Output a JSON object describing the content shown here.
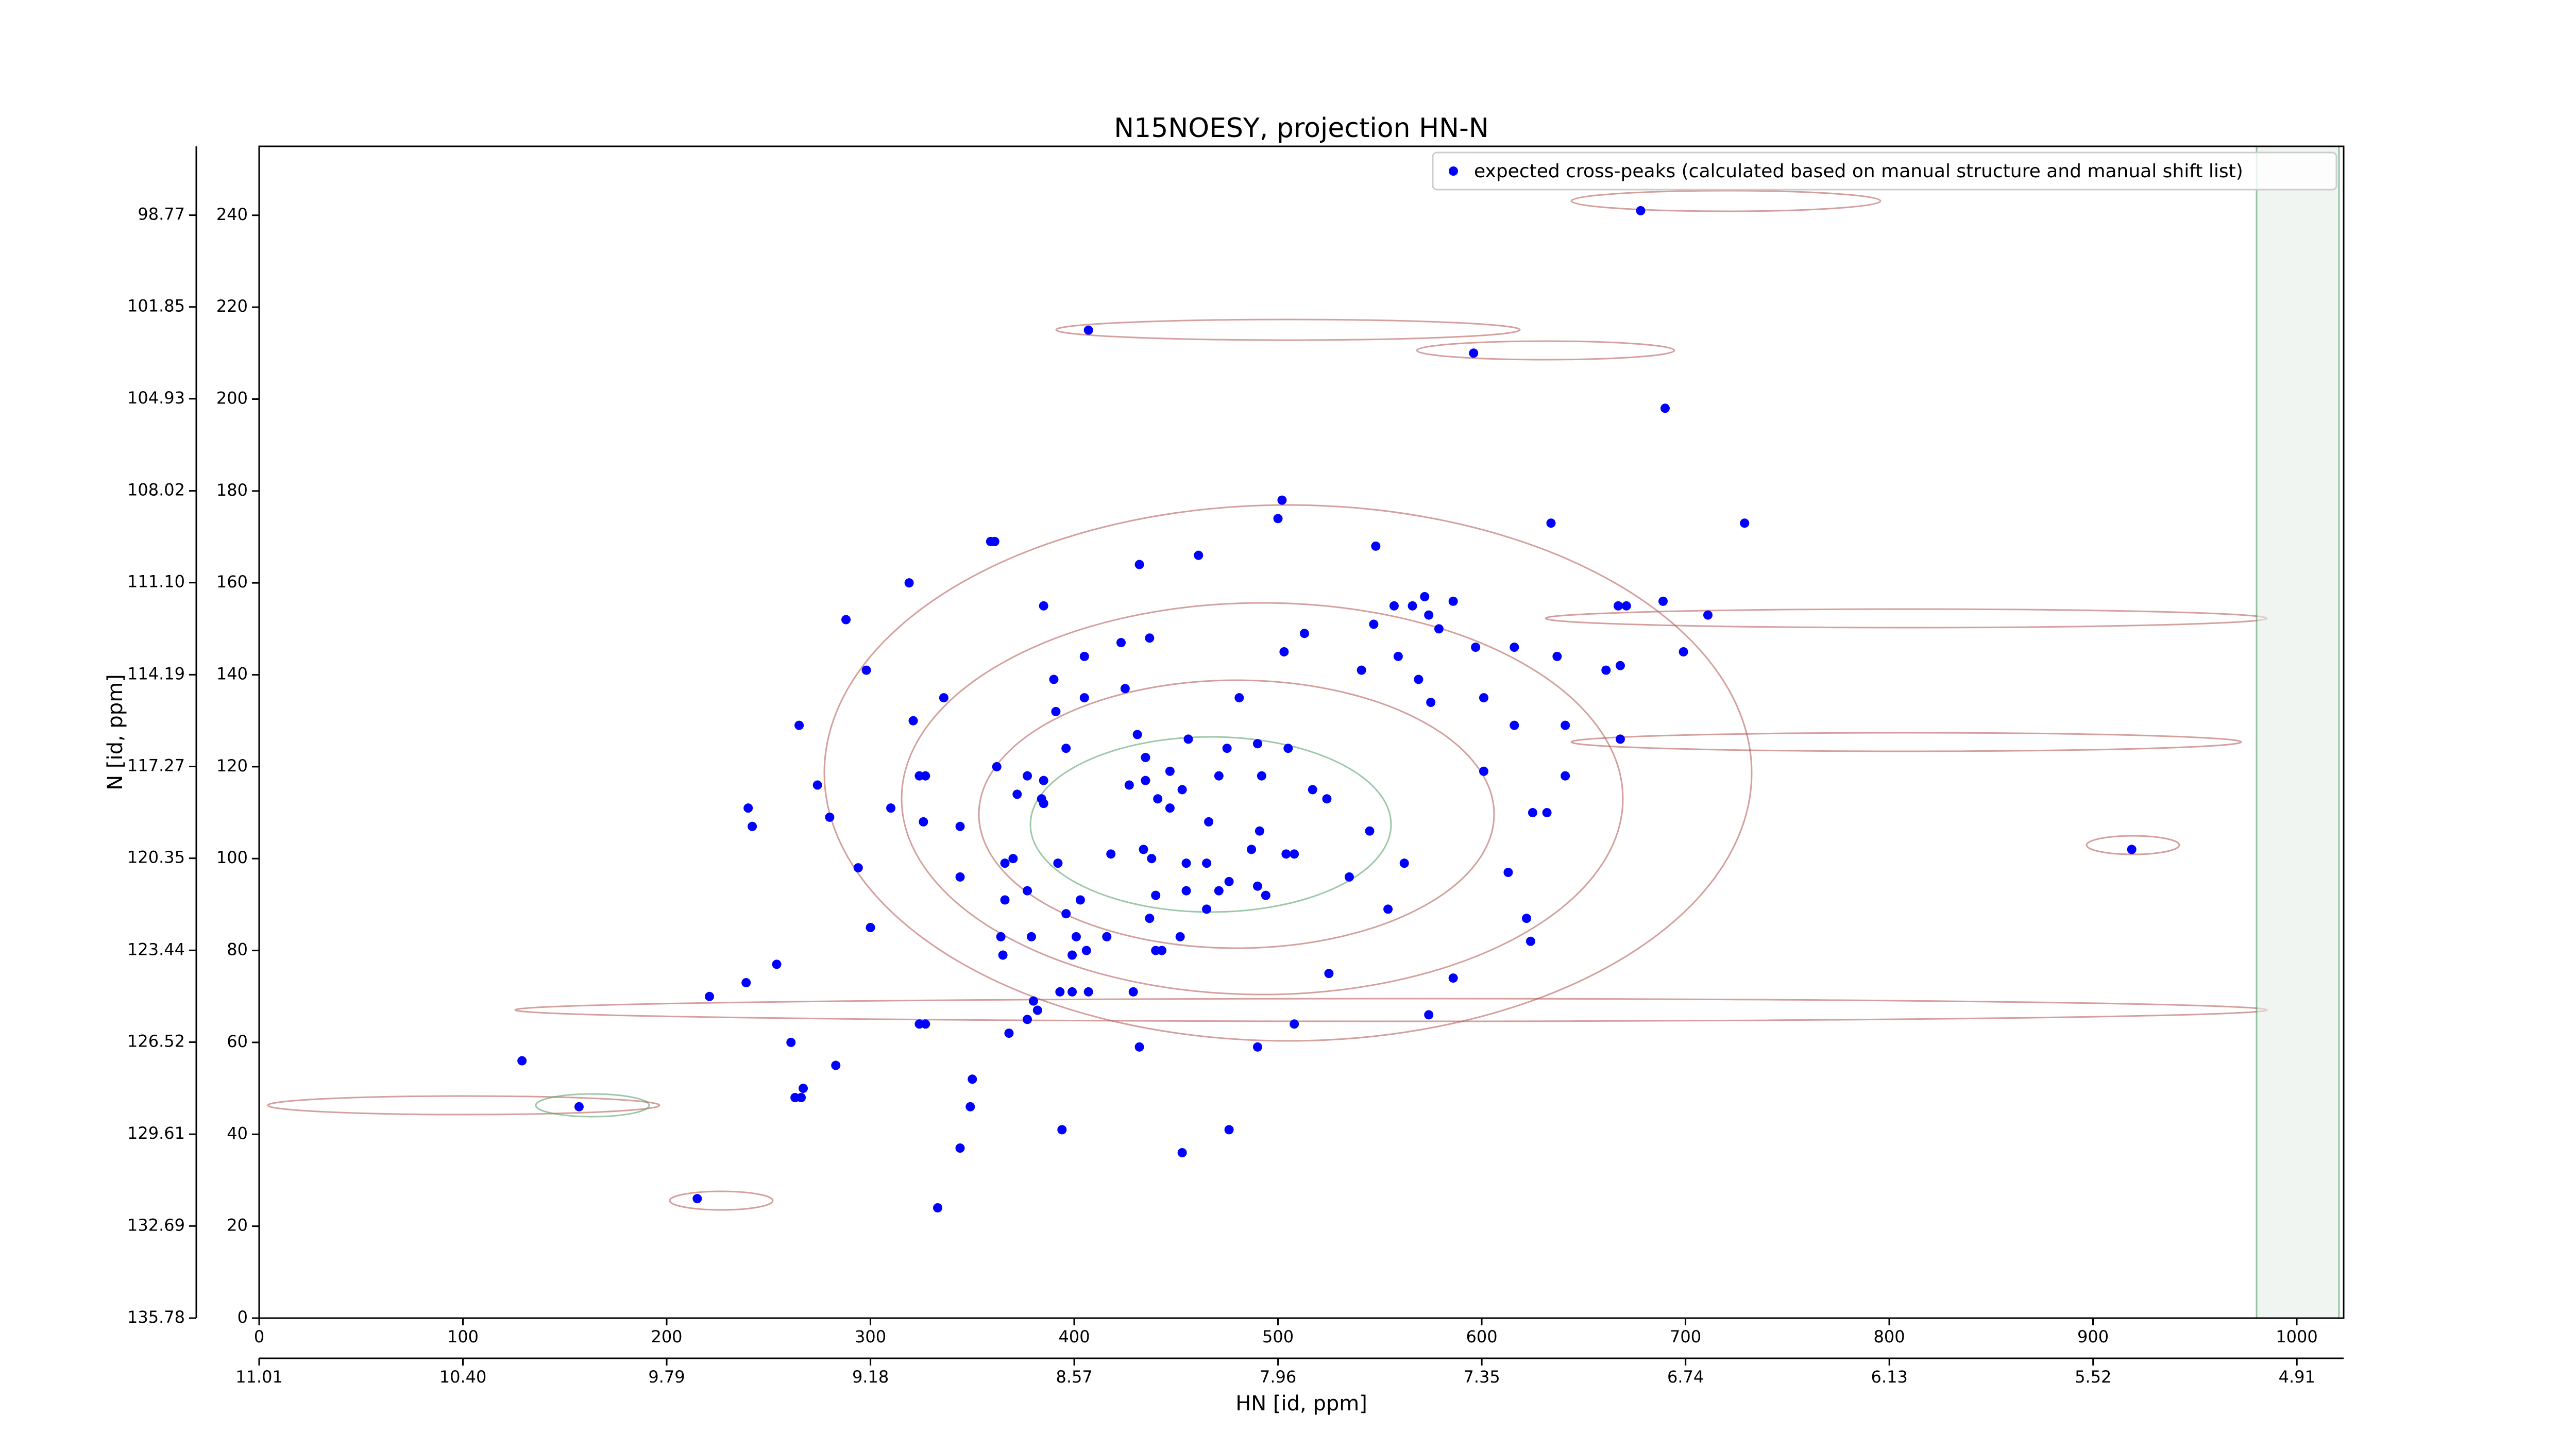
{
  "chart_data": {
    "type": "scatter",
    "title": "N15NOESY, projection HN-N",
    "x_label": "HN [id, ppm]",
    "y_label": "N [id, ppm]",
    "legend": "upper right",
    "series": [
      {
        "name": "expected cross-peaks (calculated based on manual structure and manual shift list)",
        "color": "#0000ff",
        "x": [
          678,
          729,
          407,
          596,
          690,
          502,
          500,
          634,
          359,
          361,
          461,
          548,
          432,
          319,
          385,
          288,
          557,
          566,
          572,
          574,
          586,
          667,
          671,
          689,
          711,
          513,
          547,
          579,
          423,
          437,
          503,
          597,
          616,
          637,
          699,
          405,
          298,
          541,
          559,
          661,
          668,
          390,
          425,
          569,
          336,
          405,
          481,
          575,
          601,
          391,
          321,
          265,
          616,
          641,
          668,
          456,
          431,
          475,
          505,
          490,
          396,
          435,
          362,
          377,
          447,
          471,
          492,
          427,
          601,
          641,
          324,
          327,
          274,
          385,
          435,
          453,
          517,
          372,
          384,
          385,
          441,
          447,
          524,
          240,
          280,
          310,
          625,
          632,
          242,
          326,
          344,
          466,
          545,
          491,
          418,
          434,
          487,
          508,
          919,
          294,
          366,
          370,
          392,
          438,
          455,
          465,
          504,
          562,
          613,
          344,
          476,
          455,
          471,
          490,
          535,
          377,
          366,
          403,
          440,
          465,
          494,
          554,
          396,
          437,
          300,
          622,
          364,
          379,
          401,
          416,
          452,
          624,
          365,
          399,
          406,
          440,
          443,
          254,
          525,
          586,
          239,
          221,
          393,
          399,
          407,
          429,
          380,
          382,
          377,
          324,
          327,
          508,
          574,
          368,
          261,
          432,
          490,
          129,
          283,
          350,
          267,
          263,
          266,
          157,
          349,
          394,
          476,
          344,
          453,
          215,
          333
        ],
        "y": [
          241,
          173,
          215,
          210,
          198,
          178,
          174,
          173,
          169,
          169,
          166,
          168,
          164,
          160,
          155,
          152,
          155,
          155,
          157,
          153,
          156,
          155,
          155,
          156,
          153,
          149,
          151,
          150,
          147,
          148,
          145,
          146,
          146,
          144,
          145,
          144,
          141,
          141,
          144,
          141,
          142,
          139,
          137,
          139,
          135,
          135,
          135,
          134,
          135,
          132,
          130,
          129,
          129,
          129,
          126,
          126,
          127,
          124,
          124,
          125,
          124,
          122,
          120,
          118,
          119,
          118,
          118,
          116,
          119,
          118,
          118,
          118,
          116,
          117,
          117,
          115,
          115,
          114,
          113,
          112,
          113,
          111,
          113,
          111,
          109,
          111,
          110,
          110,
          107,
          108,
          107,
          108,
          106,
          106,
          101,
          102,
          102,
          101,
          102,
          98,
          99,
          100,
          99,
          100,
          99,
          99,
          101,
          99,
          97,
          96,
          95,
          93,
          93,
          94,
          96,
          93,
          91,
          91,
          92,
          89,
          92,
          89,
          88,
          87,
          85,
          87,
          83,
          83,
          83,
          83,
          83,
          82,
          79,
          79,
          80,
          80,
          80,
          77,
          75,
          74,
          73,
          70,
          71,
          71,
          71,
          71,
          69,
          67,
          65,
          64,
          64,
          64,
          66,
          62,
          60,
          59,
          59,
          56,
          55,
          52,
          50,
          48,
          48,
          46,
          46,
          41,
          41,
          37,
          36,
          26,
          24
        ]
      }
    ],
    "xlim": [
      0,
      1023
    ],
    "xticks": [
      0,
      100,
      200,
      300,
      400,
      500,
      600,
      700,
      800,
      900,
      1000
    ],
    "ylim": [
      0,
      255
    ],
    "yticks": [
      0,
      20,
      40,
      60,
      80,
      100,
      120,
      140,
      160,
      180,
      200,
      220,
      240
    ],
    "x2lim": [
      11.01,
      4.77
    ],
    "x2ticks": [
      11.01,
      {
        "value": 10.4,
        "label": "10.40"
      },
      9.79,
      9.18,
      8.57,
      7.96,
      7.35,
      6.74,
      6.13,
      5.52,
      4.91
    ],
    "y2lim": [
      135.78,
      96.46
    ],
    "y2ticks": [
      135.78,
      132.69,
      129.61,
      126.52,
      123.44,
      120.35,
      117.27,
      114.19,
      {
        "value": 111.1,
        "label": "111.10"
      },
      108.02,
      104.93,
      101.85,
      98.77
    ]
  }
}
